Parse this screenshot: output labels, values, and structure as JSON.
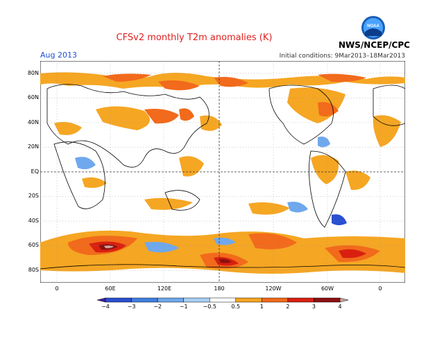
{
  "title": "CFSv2 monthly T2m anomalies (K)",
  "month": "Aug 2013",
  "initial_conditions": "Initial conditions: 9Mar2013–18Mar2013",
  "agency": "NWS/NCEP/CPC",
  "logo_text": "NOAA",
  "lat_labels": [
    "80N",
    "60N",
    "40N",
    "20N",
    "EQ",
    "20S",
    "40S",
    "60S",
    "80S"
  ],
  "lon_labels": [
    "0",
    "60E",
    "120E",
    "180",
    "120W",
    "60W",
    "0"
  ],
  "colorbar": {
    "labels": [
      "−4",
      "−3",
      "−2",
      "−1",
      "−0.5",
      "0.5",
      "1",
      "2",
      "3",
      "4"
    ],
    "colors": [
      "#3d1fa8",
      "#2a4fd0",
      "#3f7fe0",
      "#6fa8ec",
      "#a8d0f5",
      "#ffffff",
      "#f5a623",
      "#f26a1b",
      "#d92010",
      "#8c1010",
      "#c9a39a"
    ]
  }
}
